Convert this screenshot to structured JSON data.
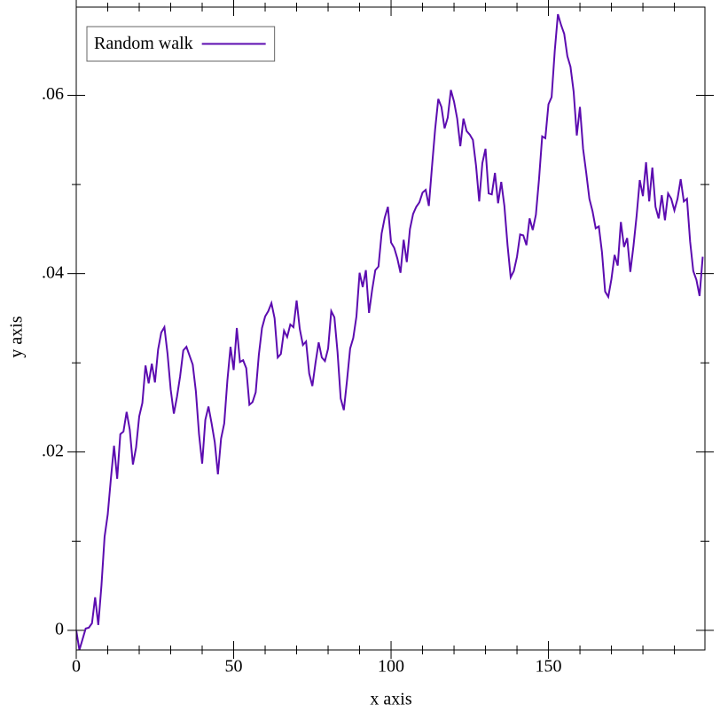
{
  "chart_data": {
    "type": "line",
    "x_label": "x axis",
    "y_label": "y axis",
    "legend": "top-left",
    "xlim": [
      0,
      199.7
    ],
    "ylim": [
      -0.0022,
      0.0699
    ],
    "xticks": [
      0,
      50,
      100,
      150
    ],
    "yticks": [
      0,
      {
        "value": 0.02,
        "label": ".02"
      },
      {
        "value": 0.04,
        "label": ".04"
      },
      {
        "value": 0.06,
        "label": ".06"
      }
    ],
    "xminorticks": [
      10,
      20,
      30,
      40,
      60,
      70,
      80,
      90,
      110,
      120,
      130,
      140,
      160,
      170,
      180,
      190
    ],
    "yminorticks": [
      0.01,
      0.03,
      0.05
    ],
    "x": [
      0,
      1,
      2,
      3,
      4,
      5,
      6,
      7,
      8,
      9,
      10,
      11,
      12,
      13,
      14,
      15,
      16,
      17,
      18,
      19,
      20,
      21,
      22,
      23,
      24,
      25,
      26,
      27,
      28,
      29,
      30,
      31,
      32,
      33,
      34,
      35,
      36,
      37,
      38,
      39,
      40,
      41,
      42,
      43,
      44,
      45,
      46,
      47,
      48,
      49,
      50,
      51,
      52,
      53,
      54,
      55,
      56,
      57,
      58,
      59,
      60,
      61,
      62,
      63,
      64,
      65,
      66,
      67,
      68,
      69,
      70,
      71,
      72,
      73,
      74,
      75,
      76,
      77,
      78,
      79,
      80,
      81,
      82,
      83,
      84,
      85,
      86,
      87,
      88,
      89,
      90,
      91,
      92,
      93,
      94,
      95,
      96,
      97,
      98,
      99,
      100,
      101,
      102,
      103,
      104,
      105,
      106,
      107,
      108,
      109,
      110,
      111,
      112,
      113,
      114,
      115,
      116,
      117,
      118,
      119,
      120,
      121,
      122,
      123,
      124,
      125,
      126,
      127,
      128,
      129,
      130,
      131,
      132,
      133,
      134,
      135,
      136,
      137,
      138,
      139,
      140,
      141,
      142,
      143,
      144,
      145,
      146,
      147,
      148,
      149,
      150,
      151,
      152,
      153,
      154,
      155,
      156,
      157,
      158,
      159,
      160,
      161,
      162,
      163,
      164,
      165,
      166,
      167,
      168,
      169,
      170,
      171,
      172,
      173,
      174,
      175,
      176,
      177,
      178,
      179,
      180,
      181,
      182,
      183,
      184,
      185,
      186,
      187,
      188,
      189,
      190,
      191,
      192,
      193,
      194,
      195,
      196,
      197,
      198,
      199
    ],
    "series": [
      {
        "name": "Random walk",
        "color": "#5c0cb0",
        "values": [
          0,
          -0.0022,
          -0.001,
          0.0002,
          0.0003,
          0.0008,
          0.0037,
          0.0006,
          0.005,
          0.0105,
          0.013,
          0.017,
          0.0207,
          0.017,
          0.022,
          0.0223,
          0.0245,
          0.0225,
          0.0186,
          0.0205,
          0.024,
          0.0255,
          0.0297,
          0.0277,
          0.0299,
          0.0278,
          0.0315,
          0.0334,
          0.034,
          0.031,
          0.027,
          0.0243,
          0.0262,
          0.0285,
          0.0314,
          0.0318,
          0.0308,
          0.0298,
          0.0268,
          0.022,
          0.0187,
          0.0236,
          0.0251,
          0.0232,
          0.0211,
          0.0175,
          0.0215,
          0.0232,
          0.028,
          0.0318,
          0.0292,
          0.0339,
          0.0301,
          0.0303,
          0.0294,
          0.0253,
          0.0256,
          0.0267,
          0.0309,
          0.0339,
          0.0352,
          0.0358,
          0.0367,
          0.035,
          0.0306,
          0.031,
          0.0336,
          0.0329,
          0.0343,
          0.034,
          0.037,
          0.0338,
          0.032,
          0.0324,
          0.0288,
          0.0274,
          0.03,
          0.0323,
          0.0306,
          0.0302,
          0.0316,
          0.0358,
          0.0351,
          0.0312,
          0.026,
          0.0247,
          0.028,
          0.0316,
          0.0328,
          0.0352,
          0.0401,
          0.0385,
          0.0404,
          0.0356,
          0.0382,
          0.0404,
          0.0408,
          0.0445,
          0.0463,
          0.0475,
          0.0435,
          0.0429,
          0.0417,
          0.0401,
          0.0438,
          0.0413,
          0.045,
          0.0467,
          0.0475,
          0.048,
          0.0491,
          0.0494,
          0.0476,
          0.052,
          0.0562,
          0.0596,
          0.0587,
          0.0563,
          0.0575,
          0.0606,
          0.0593,
          0.0574,
          0.0543,
          0.0574,
          0.056,
          0.0556,
          0.055,
          0.0521,
          0.0481,
          0.0524,
          0.054,
          0.049,
          0.0489,
          0.0513,
          0.0479,
          0.0503,
          0.0476,
          0.0432,
          0.0396,
          0.0403,
          0.0419,
          0.0444,
          0.0443,
          0.0432,
          0.0462,
          0.0449,
          0.0466,
          0.0506,
          0.0554,
          0.0552,
          0.059,
          0.0598,
          0.065,
          0.0691,
          0.0679,
          0.0669,
          0.0644,
          0.0632,
          0.0604,
          0.0555,
          0.0587,
          0.054,
          0.0513,
          0.0484,
          0.047,
          0.0451,
          0.0453,
          0.0424,
          0.038,
          0.0374,
          0.0394,
          0.0421,
          0.0409,
          0.0458,
          0.043,
          0.044,
          0.0402,
          0.0431,
          0.0465,
          0.0505,
          0.0487,
          0.0525,
          0.0481,
          0.0519,
          0.0475,
          0.0462,
          0.0488,
          0.046,
          0.049,
          0.0484,
          0.0471,
          0.0484,
          0.0506,
          0.0481,
          0.0484,
          0.0436,
          0.0403,
          0.0393,
          0.0375,
          0.0419
        ]
      }
    ]
  }
}
